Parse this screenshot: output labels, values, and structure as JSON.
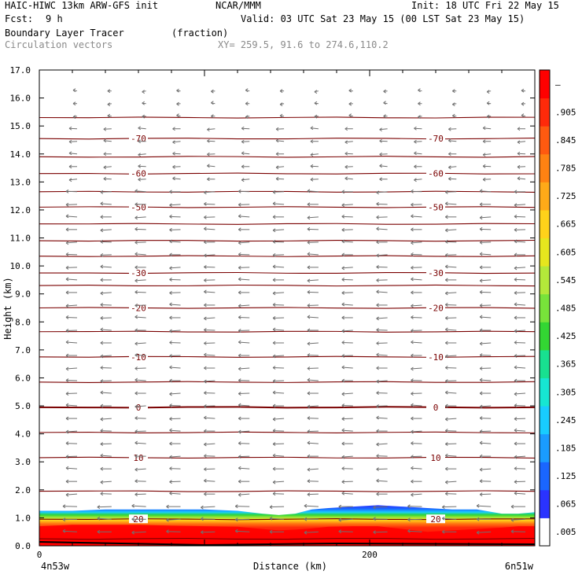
{
  "header": {
    "model": "HAIC-HIWC 13km ARW-GFS init",
    "center": "NCAR/MMM",
    "init": "Init: 18 UTC Fri 22 May 15",
    "fcst_label": "Fcst:",
    "fcst_value": "9 h",
    "valid": "Valid: 03 UTC Sat 23 May 15 (00 LST Sat 23 May 15)",
    "field": "Boundary Layer Tracer",
    "units": "(fraction)",
    "vectors": "Circulation vectors",
    "xy": "XY= 259.5, 91.6 to 274.6,110.2"
  },
  "chart_data": {
    "type": "heatmap",
    "title": "Boundary Layer Tracer",
    "ylabel": "Height (km)",
    "xlabel": "Distance (km)",
    "ylim": [
      0,
      17
    ],
    "xlim": [
      0,
      300
    ],
    "y_ticks": [
      "0.0",
      "1.0",
      "2.0",
      "3.0",
      "4.0",
      "5.0",
      "6.0",
      "7.0",
      "8.0",
      "9.0",
      "10.0",
      "11.0",
      "12.0",
      "13.0",
      "14.0",
      "15.0",
      "16.0",
      "17.0"
    ],
    "x_ticks": [
      {
        "value": 0,
        "label": "0"
      },
      {
        "value": 200,
        "label": "200"
      }
    ],
    "x_end_labels": {
      "left": "4n53w",
      "right": "6n51w"
    },
    "colorbar": {
      "labels": [
        ".005",
        ".065",
        ".125",
        ".185",
        ".245",
        ".305",
        ".365",
        ".425",
        ".485",
        ".545",
        ".605",
        ".665",
        ".725",
        ".785",
        ".845",
        ".905",
        "–"
      ],
      "colors": [
        "#ffffff",
        "#2a33ff",
        "#1a66ff",
        "#1a9cff",
        "#18ccff",
        "#16e6d2",
        "#18e090",
        "#33d633",
        "#78e33a",
        "#b4e83a",
        "#e6e61e",
        "#ffd21a",
        "#ffaa18",
        "#ff8212",
        "#ff5a10",
        "#ff2a0a",
        "#ff0000"
      ]
    },
    "temperature_contours": {
      "unit": "C",
      "levels": [
        {
          "y": 0.25,
          "label": "",
          "bold": false
        },
        {
          "y": 0.95,
          "label": "20",
          "bold": false
        },
        {
          "y": 1.95,
          "label": "",
          "bold": false
        },
        {
          "y": 3.15,
          "label": "10",
          "bold": false
        },
        {
          "y": 4.05,
          "label": "",
          "bold": false
        },
        {
          "y": 4.95,
          "label": "0",
          "bold": true
        },
        {
          "y": 5.85,
          "label": "",
          "bold": false
        },
        {
          "y": 6.75,
          "label": "-10",
          "bold": false
        },
        {
          "y": 7.65,
          "label": "",
          "bold": false
        },
        {
          "y": 8.5,
          "label": "-20",
          "bold": false
        },
        {
          "y": 9.3,
          "label": "",
          "bold": false
        },
        {
          "y": 9.75,
          "label": "-30",
          "bold": false
        },
        {
          "y": 10.35,
          "label": "",
          "bold": false
        },
        {
          "y": 10.9,
          "label": "",
          "bold": false
        },
        {
          "y": 11.5,
          "label": "",
          "bold": false
        },
        {
          "y": 12.1,
          "label": "-50",
          "bold": false
        },
        {
          "y": 12.65,
          "label": "",
          "bold": false
        },
        {
          "y": 13.3,
          "label": "-60",
          "bold": false
        },
        {
          "y": 13.9,
          "label": "",
          "bold": false
        },
        {
          "y": 14.55,
          "label": "-70",
          "bold": false
        },
        {
          "y": 15.3,
          "label": "",
          "bold": false
        }
      ]
    },
    "label_positions_x": [
      60,
      240
    ],
    "tracer_layer": {
      "x": [
        0,
        20,
        40,
        60,
        80,
        100,
        120,
        135,
        145,
        155,
        165,
        175,
        190,
        205,
        220,
        235,
        250,
        265,
        280,
        290,
        300
      ],
      "top": [
        1.25,
        1.25,
        1.3,
        1.3,
        1.3,
        1.3,
        1.25,
        1.15,
        1.1,
        1.15,
        1.3,
        1.35,
        1.4,
        1.45,
        1.4,
        1.35,
        1.3,
        1.3,
        1.15,
        1.15,
        1.2
      ],
      "red_top": [
        0.7,
        0.75,
        0.75,
        0.75,
        0.72,
        0.7,
        0.68,
        0.6,
        0.55,
        0.58,
        0.62,
        0.68,
        0.7,
        0.7,
        0.6,
        0.5,
        0.55,
        0.6,
        0.65,
        0.7,
        0.7
      ]
    },
    "vectors": {
      "columns": 14,
      "direction": "westward",
      "note": ""
    }
  }
}
